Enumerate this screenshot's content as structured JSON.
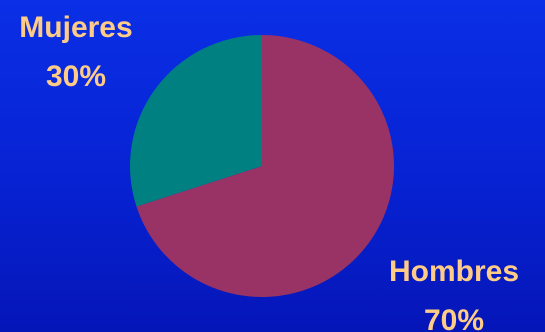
{
  "chart_data": {
    "type": "pie",
    "slices": [
      {
        "label": "Hombres",
        "pct_label": "70%",
        "value": 70,
        "color": "#993366"
      },
      {
        "label": "Mujeres",
        "pct_label": "30%",
        "value": 30,
        "color": "#008080"
      }
    ],
    "start": "12 o'clock",
    "direction": "clockwise",
    "label_color": "#ffcc88",
    "background": "#0a2fe6"
  }
}
